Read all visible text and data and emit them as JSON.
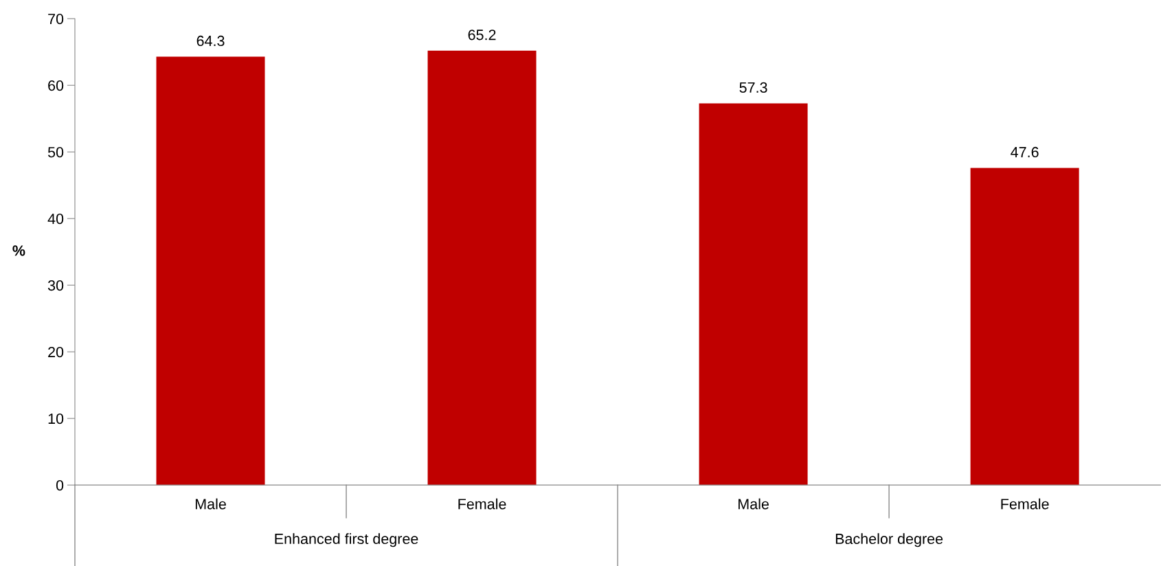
{
  "chart_data": {
    "type": "bar",
    "ylabel": "%",
    "categories": [
      "Male",
      "Female",
      "Male",
      "Female"
    ],
    "values": [
      64.3,
      65.2,
      57.3,
      47.6
    ],
    "color": "#c00000",
    "ylim": [
      0,
      70
    ],
    "yticks": [
      0,
      10,
      20,
      30,
      40,
      50,
      60,
      70
    ],
    "data_labels": true,
    "grid": false,
    "annotations": [
      "Enhanced first degree",
      "Bachelor degree"
    ]
  }
}
